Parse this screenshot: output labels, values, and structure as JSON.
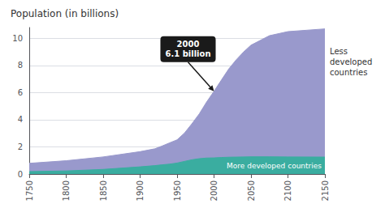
{
  "chart_data": {
    "type": "area",
    "title": "Population (in billions)",
    "x": [
      1750,
      1800,
      1850,
      1900,
      1920,
      1930,
      1940,
      1950,
      1960,
      1970,
      1980,
      1990,
      2000,
      2010,
      2020,
      2030,
      2040,
      2050,
      2075,
      2100,
      2150
    ],
    "series": [
      {
        "name": "Less\ndeveloped\ncountries",
        "color": "#9999cc",
        "values": [
          0.79,
          0.98,
          1.26,
          1.65,
          1.86,
          2.07,
          2.3,
          2.52,
          3.02,
          3.7,
          4.43,
          5.31,
          6.1,
          6.93,
          7.75,
          8.42,
          9.0,
          9.5,
          10.2,
          10.5,
          10.7
        ]
      },
      {
        "name": "More developed countries",
        "color": "#3aada0",
        "values": [
          0.18,
          0.23,
          0.34,
          0.53,
          0.62,
          0.68,
          0.73,
          0.81,
          0.93,
          1.05,
          1.13,
          1.18,
          1.19,
          1.22,
          1.24,
          1.25,
          1.26,
          1.27,
          1.27,
          1.26,
          1.25
        ]
      }
    ],
    "xlim": [
      1750,
      2150
    ],
    "xticks": [
      1750,
      1800,
      1850,
      1900,
      1950,
      2000,
      2050,
      2100,
      2150
    ],
    "ylim": [
      0,
      10.8
    ],
    "yticks": [
      0,
      2,
      4,
      6,
      8,
      10
    ],
    "grid": true,
    "annotations": [
      {
        "text": "2000\n6.1 billion",
        "x": 2000,
        "y": 6.1,
        "color": "#1a1a1a"
      }
    ]
  }
}
